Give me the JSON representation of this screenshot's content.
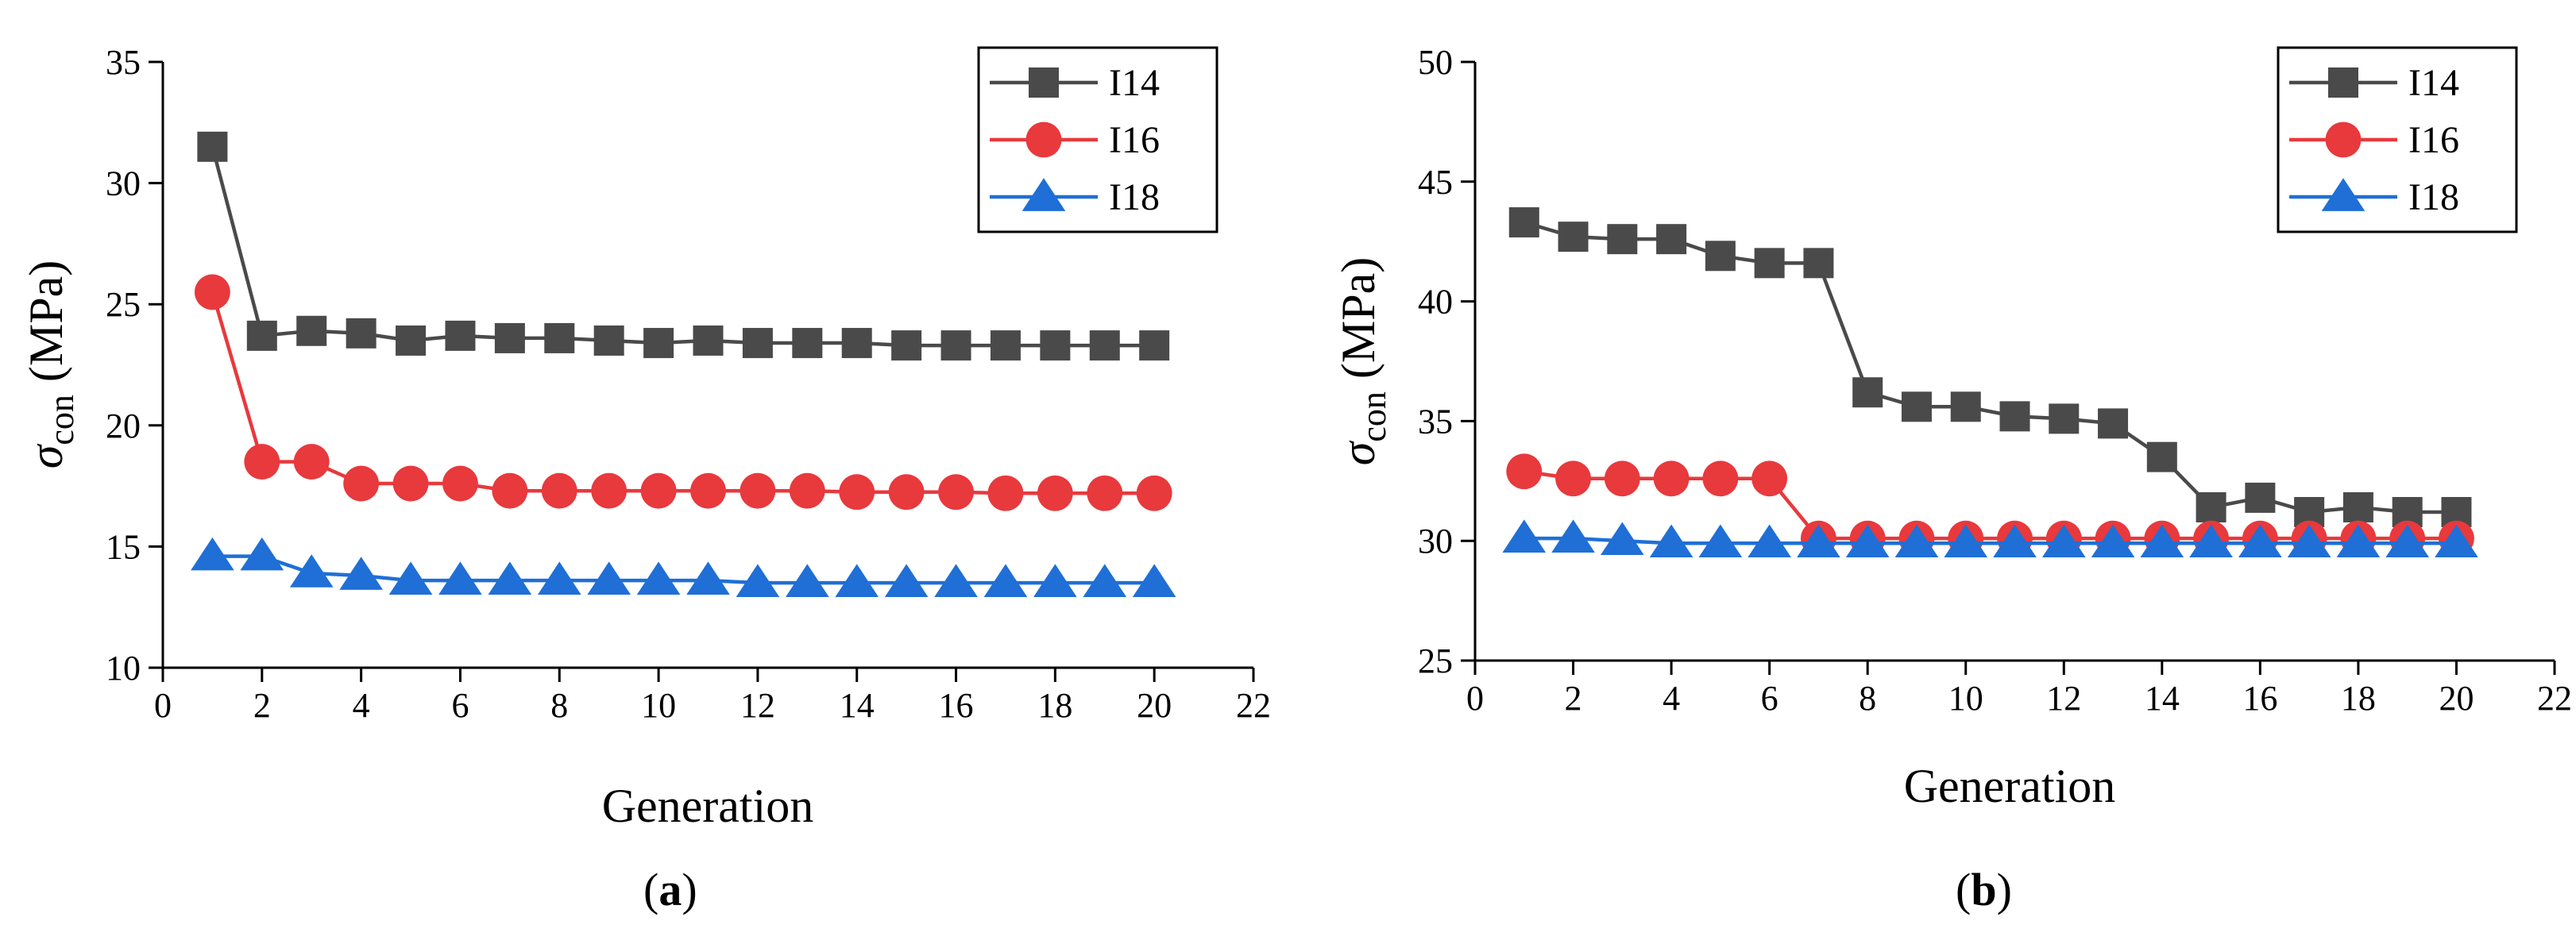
{
  "chart_data": [
    {
      "type": "line",
      "panel_label": "a",
      "x": [
        1,
        2,
        3,
        4,
        5,
        6,
        7,
        8,
        9,
        10,
        11,
        12,
        13,
        14,
        15,
        16,
        17,
        18,
        19,
        20
      ],
      "xlim": [
        0,
        22
      ],
      "ylim": [
        10,
        35
      ],
      "xticks": [
        0,
        2,
        4,
        6,
        8,
        10,
        12,
        14,
        16,
        18,
        20,
        22
      ],
      "yticks": [
        10,
        15,
        20,
        25,
        30,
        35
      ],
      "xlabel": "Generation",
      "ylabel_symbol": "σ",
      "ylabel_sub": "con",
      "ylabel_unit": "(MPa)",
      "legend_position": "top-right",
      "series": [
        {
          "name": "I14",
          "color": "#4a4a4a",
          "marker": "square",
          "values": [
            31.5,
            23.7,
            23.9,
            23.8,
            23.5,
            23.7,
            23.6,
            23.6,
            23.5,
            23.4,
            23.5,
            23.4,
            23.4,
            23.4,
            23.3,
            23.3,
            23.3,
            23.3,
            23.3,
            23.3
          ]
        },
        {
          "name": "I16",
          "color": "#e8393d",
          "marker": "circle",
          "values": [
            25.5,
            18.5,
            18.5,
            17.6,
            17.6,
            17.6,
            17.3,
            17.3,
            17.3,
            17.3,
            17.3,
            17.3,
            17.3,
            17.25,
            17.25,
            17.25,
            17.2,
            17.2,
            17.2,
            17.2
          ]
        },
        {
          "name": "I18",
          "color": "#1f6fd6",
          "marker": "triangle",
          "values": [
            14.6,
            14.6,
            13.9,
            13.8,
            13.6,
            13.6,
            13.6,
            13.6,
            13.6,
            13.6,
            13.6,
            13.5,
            13.5,
            13.5,
            13.5,
            13.5,
            13.5,
            13.5,
            13.5,
            13.5
          ]
        }
      ]
    },
    {
      "type": "line",
      "panel_label": "b",
      "x": [
        1,
        2,
        3,
        4,
        5,
        6,
        7,
        8,
        9,
        10,
        11,
        12,
        13,
        14,
        15,
        16,
        17,
        18,
        19,
        20
      ],
      "xlim": [
        0,
        22
      ],
      "ylim": [
        25,
        50
      ],
      "xticks": [
        0,
        2,
        4,
        6,
        8,
        10,
        12,
        14,
        16,
        18,
        20,
        22
      ],
      "yticks": [
        25,
        30,
        35,
        40,
        45,
        50
      ],
      "xlabel": "Generation",
      "ylabel_symbol": "σ",
      "ylabel_sub": "con",
      "ylabel_unit": "(MPa)",
      "legend_position": "top-right",
      "series": [
        {
          "name": "I14",
          "color": "#4a4a4a",
          "marker": "square",
          "values": [
            43.3,
            42.7,
            42.6,
            42.6,
            41.9,
            41.6,
            41.6,
            36.2,
            35.6,
            35.6,
            35.2,
            35.1,
            34.9,
            33.5,
            31.4,
            31.8,
            31.2,
            31.4,
            31.2,
            31.2
          ]
        },
        {
          "name": "I16",
          "color": "#e8393d",
          "marker": "circle",
          "values": [
            32.9,
            32.6,
            32.6,
            32.6,
            32.6,
            32.6,
            30.1,
            30.1,
            30.1,
            30.1,
            30.1,
            30.1,
            30.1,
            30.1,
            30.1,
            30.1,
            30.1,
            30.1,
            30.1,
            30.1
          ]
        },
        {
          "name": "I18",
          "color": "#1f6fd6",
          "marker": "triangle",
          "values": [
            30.1,
            30.1,
            30.0,
            29.9,
            29.9,
            29.9,
            29.9,
            29.9,
            29.9,
            29.9,
            29.9,
            29.9,
            29.9,
            29.9,
            29.9,
            29.9,
            29.9,
            29.9,
            29.9,
            29.9
          ]
        }
      ]
    }
  ]
}
